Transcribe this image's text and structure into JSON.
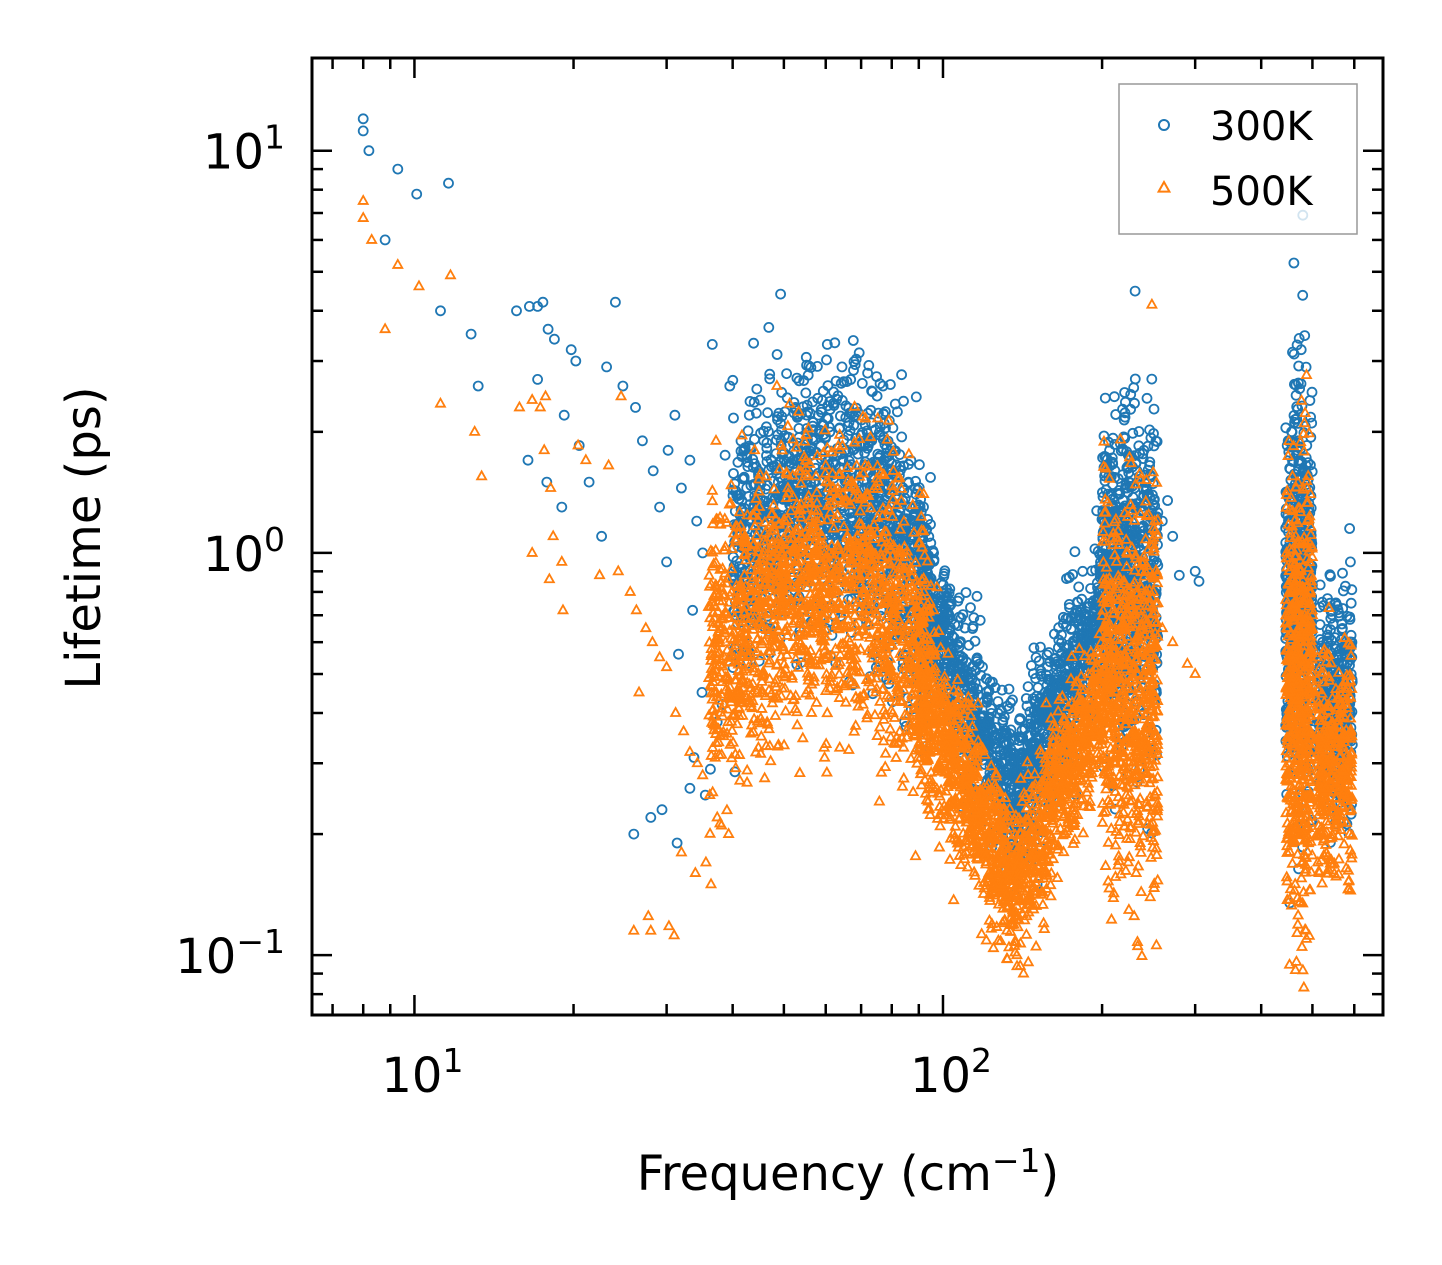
{
  "chart_data": {
    "type": "scatter",
    "title": "",
    "xlabel": "Frequency (cm",
    "xlabel_sup": "−1",
    "xlabel_suffix": ")",
    "ylabel": "Lifetime (ps)",
    "xscale": "log",
    "yscale": "log",
    "xlim": [
      6.4,
      680
    ],
    "ylim": [
      0.071,
      17
    ],
    "x_ticks": [
      {
        "value": 10,
        "base": "10",
        "exp": "1"
      },
      {
        "value": 100,
        "base": "10",
        "exp": "2"
      }
    ],
    "y_ticks": [
      {
        "value": 0.1,
        "base": "10",
        "exp": "−1"
      },
      {
        "value": 1,
        "base": "10",
        "exp": "0"
      },
      {
        "value": 10,
        "base": "10",
        "exp": "1"
      }
    ],
    "legend_position": "top-right",
    "series": [
      {
        "name": "300K",
        "marker": "circle",
        "color": "#1f77b4",
        "points": [
          [
            8.0,
            12.0
          ],
          [
            8.0,
            11.2
          ],
          [
            8.2,
            10.0
          ],
          [
            9.3,
            9.0
          ],
          [
            10.1,
            7.8
          ],
          [
            11.6,
            8.3
          ],
          [
            8.8,
            6.0
          ],
          [
            11.2,
            4.0
          ],
          [
            12.8,
            3.5
          ],
          [
            13.2,
            2.6
          ],
          [
            15.6,
            4.0
          ],
          [
            16.5,
            4.1
          ],
          [
            17.1,
            4.1
          ],
          [
            17.5,
            4.2
          ],
          [
            17.9,
            3.6
          ],
          [
            19.8,
            3.2
          ],
          [
            20.2,
            3.0
          ],
          [
            24.0,
            4.2
          ],
          [
            17.1,
            2.7
          ],
          [
            18.4,
            3.4
          ],
          [
            19.2,
            2.2
          ],
          [
            16.4,
            1.7
          ],
          [
            17.8,
            1.5
          ],
          [
            19.0,
            1.3
          ],
          [
            20.5,
            1.85
          ],
          [
            21.4,
            1.5
          ],
          [
            22.6,
            1.1
          ],
          [
            23.1,
            2.9
          ],
          [
            24.8,
            2.6
          ],
          [
            26.2,
            2.3
          ],
          [
            27.0,
            1.9
          ],
          [
            28.3,
            1.6
          ],
          [
            29.1,
            1.3
          ],
          [
            30.2,
            1.8
          ],
          [
            31.1,
            2.2
          ],
          [
            32.0,
            1.45
          ],
          [
            33.2,
            1.7
          ],
          [
            34.2,
            1.2
          ],
          [
            35.1,
            1.0
          ],
          [
            36.6,
            3.3
          ],
          [
            38.7,
            1.75
          ],
          [
            39.5,
            2.6
          ],
          [
            43.0,
            2.2
          ],
          [
            45.1,
            2.4
          ],
          [
            49.3,
            4.4
          ],
          [
            55.0,
            2.5
          ],
          [
            60.4,
            3.3
          ],
          [
            64.4,
            2.9
          ],
          [
            72.0,
            2.8
          ],
          [
            77.0,
            2.6
          ],
          [
            86.0,
            1.5
          ],
          [
            96.0,
            1.0
          ],
          [
            26.0,
            0.2
          ],
          [
            28.0,
            0.22
          ],
          [
            29.4,
            0.23
          ],
          [
            31.4,
            0.19
          ],
          [
            33.2,
            0.26
          ],
          [
            33.8,
            0.31
          ],
          [
            35.5,
            0.25
          ],
          [
            36.3,
            0.29
          ],
          [
            37.4,
            0.38
          ],
          [
            38.2,
            0.42
          ],
          [
            30.0,
            0.95
          ],
          [
            33.6,
            0.72
          ],
          [
            31.6,
            0.56
          ],
          [
            35.0,
            0.45
          ],
          [
            196.0,
            0.82
          ],
          [
            205.0,
            1.4
          ],
          [
            213.0,
            1.3
          ],
          [
            225.0,
            1.75
          ],
          [
            233.0,
            1.6
          ],
          [
            240.0,
            1.8
          ],
          [
            246.0,
            1.65
          ],
          [
            260.0,
            1.2
          ],
          [
            266.0,
            1.35
          ],
          [
            272.0,
            1.1
          ],
          [
            280.0,
            0.88
          ],
          [
            300.0,
            0.9
          ],
          [
            305.0,
            0.85
          ],
          [
            448.0,
            1.85
          ],
          [
            450.0,
            1.9
          ],
          [
            468.0,
            1.8
          ],
          [
            470.0,
            1.9
          ],
          [
            472.0,
            1.7
          ],
          [
            485.0,
            1.6
          ],
          [
            488.0,
            1.85
          ],
          [
            535.0,
            0.6
          ],
          [
            540.0,
            0.75
          ],
          [
            588.0,
            1.15
          ],
          [
            590.0,
            0.95
          ],
          [
            592.0,
            0.75
          ],
          [
            150.0,
            0.55
          ],
          [
            153.0,
            0.5
          ],
          [
            156.0,
            0.45
          ],
          [
            162.0,
            0.3
          ],
          [
            145.0,
            0.28
          ],
          [
            140.0,
            0.22
          ],
          [
            135.0,
            0.18
          ],
          [
            130.0,
            0.22
          ],
          [
            120.0,
            0.32
          ],
          [
            110.0,
            0.5
          ]
        ]
      },
      {
        "name": "500K",
        "marker": "triangle",
        "color": "#ff7f0e",
        "points": [
          [
            8.0,
            7.5
          ],
          [
            8.0,
            6.8
          ],
          [
            8.3,
            6.0
          ],
          [
            9.3,
            5.2
          ],
          [
            10.2,
            4.6
          ],
          [
            11.7,
            4.9
          ],
          [
            8.8,
            3.6
          ],
          [
            11.2,
            2.35
          ],
          [
            13.0,
            2.0
          ],
          [
            13.4,
            1.55
          ],
          [
            15.8,
            2.3
          ],
          [
            16.7,
            2.4
          ],
          [
            17.3,
            2.3
          ],
          [
            17.7,
            2.45
          ],
          [
            18.1,
            1.45
          ],
          [
            16.7,
            1.0
          ],
          [
            17.6,
            1.8
          ],
          [
            18.3,
            1.1
          ],
          [
            19.0,
            0.95
          ],
          [
            19.1,
            0.72
          ],
          [
            18.0,
            0.86
          ],
          [
            20.4,
            1.85
          ],
          [
            21.1,
            1.7
          ],
          [
            22.4,
            0.88
          ],
          [
            23.3,
            1.65
          ],
          [
            24.3,
            0.9
          ],
          [
            25.6,
            0.8
          ],
          [
            26.3,
            0.72
          ],
          [
            27.4,
            0.65
          ],
          [
            28.2,
            0.6
          ],
          [
            29.1,
            0.55
          ],
          [
            30.0,
            0.52
          ],
          [
            26.6,
            0.45
          ],
          [
            31.2,
            0.4
          ],
          [
            32.3,
            0.36
          ],
          [
            33.2,
            0.32
          ],
          [
            34.3,
            0.3
          ],
          [
            35.1,
            0.28
          ],
          [
            36.2,
            0.25
          ],
          [
            37.4,
            0.22
          ],
          [
            38.1,
            0.21
          ],
          [
            39.3,
            0.2
          ],
          [
            32.0,
            0.18
          ],
          [
            34.0,
            0.16
          ],
          [
            35.6,
            0.17
          ],
          [
            36.4,
            0.15
          ],
          [
            26.0,
            0.115
          ],
          [
            27.7,
            0.125
          ],
          [
            28.0,
            0.115
          ],
          [
            30.3,
            0.118
          ],
          [
            31.0,
            0.112
          ],
          [
            48.5,
            2.6
          ],
          [
            24.6,
            2.45
          ],
          [
            37.2,
            1.9
          ],
          [
            44.0,
            1.8
          ],
          [
            55.0,
            1.7
          ],
          [
            60.0,
            1.65
          ],
          [
            67.0,
            1.5
          ],
          [
            72.0,
            1.4
          ],
          [
            96.0,
            0.72
          ],
          [
            99.0,
            0.58
          ],
          [
            104.0,
            0.4
          ],
          [
            110.0,
            0.26
          ],
          [
            115.0,
            0.23
          ],
          [
            122.0,
            0.19
          ],
          [
            130.0,
            0.15
          ],
          [
            135.0,
            0.12
          ],
          [
            138.0,
            0.1
          ],
          [
            140.0,
            0.094
          ],
          [
            142.0,
            0.09
          ],
          [
            145.0,
            0.096
          ],
          [
            150.0,
            0.105
          ],
          [
            155.0,
            0.12
          ],
          [
            160.0,
            0.14
          ],
          [
            170.0,
            0.2
          ],
          [
            180.0,
            0.27
          ],
          [
            195.0,
            0.42
          ],
          [
            205.0,
            0.75
          ],
          [
            213.0,
            0.95
          ],
          [
            220.0,
            0.85
          ],
          [
            233.0,
            0.75
          ],
          [
            240.0,
            0.95
          ],
          [
            250.0,
            0.8
          ],
          [
            255.0,
            0.75
          ],
          [
            260.0,
            0.65
          ],
          [
            272.0,
            0.6
          ],
          [
            290.0,
            0.53
          ],
          [
            300.0,
            0.5
          ],
          [
            230.0,
            0.125
          ],
          [
            232.0,
            0.16
          ],
          [
            236.0,
            0.19
          ],
          [
            448.0,
            0.27
          ],
          [
            452.0,
            0.45
          ],
          [
            465.0,
            1.1
          ],
          [
            470.0,
            1.05
          ],
          [
            475.0,
            0.9
          ],
          [
            490.0,
            1.2
          ],
          [
            495.0,
            1.05
          ],
          [
            500.0,
            0.7
          ],
          [
            505.0,
            0.45
          ],
          [
            510.0,
            0.2
          ],
          [
            512.0,
            0.17
          ],
          [
            515.0,
            0.16
          ],
          [
            580.0,
            0.42
          ],
          [
            585.0,
            0.25
          ],
          [
            588.0,
            0.2
          ],
          [
            592.0,
            0.23
          ]
        ]
      }
    ],
    "dense_regions": [
      {
        "series": "300K",
        "x_range": [
          40,
          95
        ],
        "y_center_start": 1.0,
        "y_center_end": 0.7,
        "spread": 0.35,
        "count": 1400,
        "shape": "hump",
        "peak_x": 65,
        "peak_y": 1.35
      },
      {
        "series": "300K",
        "x_range": [
          90,
          140
        ],
        "shape": "decay",
        "y_start": 0.8,
        "y_end": 0.22,
        "spread": 0.22,
        "count": 700
      },
      {
        "series": "300K",
        "x_range": [
          138,
          200
        ],
        "shape": "rise",
        "y_start": 0.25,
        "y_end": 0.75,
        "spread": 0.22,
        "count": 650
      },
      {
        "series": "300K",
        "x_range": [
          200,
          255
        ],
        "shape": "band",
        "y_center": 0.85,
        "spread": 0.45,
        "count": 700
      },
      {
        "series": "300K",
        "x_range": [
          445,
          500
        ],
        "shape": "band",
        "y_center": 0.8,
        "spread": 0.55,
        "count": 600
      },
      {
        "series": "300K",
        "x_range": [
          515,
          595
        ],
        "shape": "band",
        "y_center": 0.42,
        "spread": 0.28,
        "count": 350
      },
      {
        "series": "500K",
        "x_range": [
          36,
          95
        ],
        "shape": "hump",
        "peak_x": 65,
        "peak_y": 0.85,
        "y_center_start": 0.55,
        "y_center_end": 0.45,
        "spread": 0.38,
        "count": 1600
      },
      {
        "series": "500K",
        "x_range": [
          90,
          138
        ],
        "shape": "decay",
        "y_start": 0.45,
        "y_end": 0.14,
        "spread": 0.22,
        "count": 800
      },
      {
        "series": "500K",
        "x_range": [
          138,
          200
        ],
        "shape": "rise",
        "y_start": 0.15,
        "y_end": 0.45,
        "spread": 0.2,
        "count": 650
      },
      {
        "series": "500K",
        "x_range": [
          200,
          255
        ],
        "shape": "band",
        "y_center": 0.45,
        "spread": 0.5,
        "count": 700
      },
      {
        "series": "500K",
        "x_range": [
          445,
          500
        ],
        "shape": "band",
        "y_center": 0.45,
        "spread": 0.6,
        "count": 600
      },
      {
        "series": "500K",
        "x_range": [
          510,
          595
        ],
        "shape": "band",
        "y_center": 0.3,
        "spread": 0.3,
        "count": 350
      }
    ]
  }
}
